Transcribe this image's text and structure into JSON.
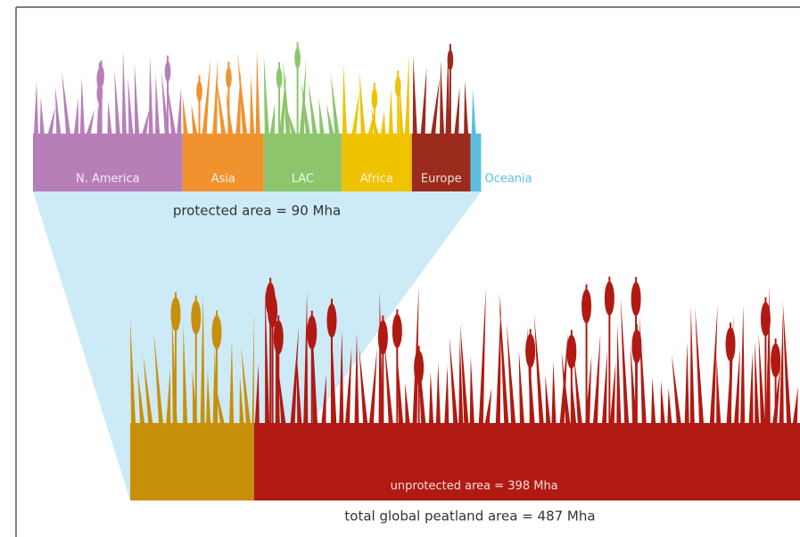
{
  "chart_data": {
    "type": "proportional-strip",
    "top": {
      "categories": [
        "N. America",
        "Asia",
        "LAC",
        "Africa",
        "Europe",
        "Oceania"
      ],
      "values": [
        30,
        16.3,
        15.6,
        14.1,
        11.8,
        2.1
      ],
      "colors": [
        "#b77fb8",
        "#f0932f",
        "#8cc56b",
        "#efc300",
        "#9b2b1c",
        "#5bc0e0"
      ],
      "label": "protected area = 90 Mha"
    },
    "bottom": {
      "values": [
        90,
        398
      ],
      "value_labels": [
        "protected area = 90 Mha",
        "unprotected area = 398 Mha"
      ],
      "colors": [
        "#c8900a",
        "#b01a12"
      ]
    },
    "total": {
      "value": 487,
      "label": "total global peatland area = 487 Mha"
    }
  }
}
